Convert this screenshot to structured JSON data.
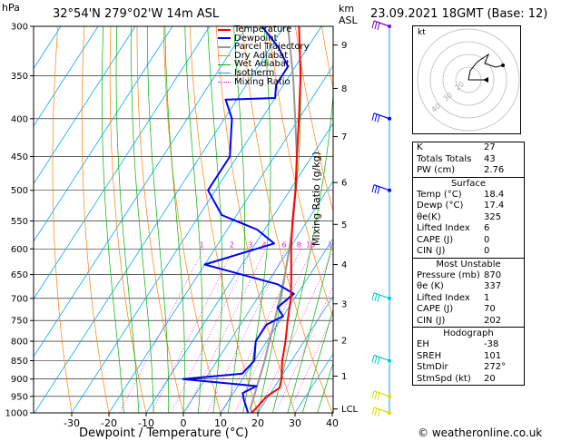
{
  "header": {
    "pressure_unit": "hPa",
    "location": "32°54'N  279°02'W  14m  ASL",
    "alt_unit_1": "km",
    "alt_unit_2": "ASL",
    "datetime": "23.09.2021  18GMT  (Base: 12)"
  },
  "legend": [
    {
      "label": "Temperature",
      "color": "#ff0000"
    },
    {
      "label": "Dewpoint",
      "color": "#0000ff"
    },
    {
      "label": "Parcel Trajectory",
      "color": "#999999"
    },
    {
      "label": "Dry Adiabat",
      "color": "#ff8000"
    },
    {
      "label": "Wet Adiabat",
      "color": "#00b000"
    },
    {
      "label": "Isotherm",
      "color": "#00aaff"
    },
    {
      "label": "Mixing Ratio",
      "color": "#ff00ff"
    }
  ],
  "chart_data": {
    "type": "skew-t",
    "xlabel": "Dewpoint / Temperature (°C)",
    "ylabel_right": "Mixing Ratio (g/kg)",
    "x_ticks": [
      "-30",
      "-20",
      "-10",
      "0",
      "10",
      "20",
      "30",
      "40"
    ],
    "p_ticks": [
      "300",
      "350",
      "400",
      "450",
      "500",
      "550",
      "600",
      "650",
      "700",
      "750",
      "800",
      "850",
      "900",
      "950",
      "1000"
    ],
    "km_ticks": [
      {
        "label": "9",
        "p": 318
      },
      {
        "label": "8",
        "p": 364
      },
      {
        "label": "7",
        "p": 423
      },
      {
        "label": "6",
        "p": 488
      },
      {
        "label": "5",
        "p": 556
      },
      {
        "label": "4",
        "p": 630
      },
      {
        "label": "3",
        "p": 712
      },
      {
        "label": "2",
        "p": 798
      },
      {
        "label": "1",
        "p": 892
      },
      {
        "label": "LCL",
        "p": 988
      }
    ],
    "mixing_ratio_labels": [
      "1",
      "2",
      "3",
      "4",
      "6",
      "8",
      "10",
      "15",
      "20",
      "25"
    ],
    "temperature": [
      {
        "p": 1000,
        "t": 18.4
      },
      {
        "p": 950,
        "t": 19.5
      },
      {
        "p": 925,
        "t": 21.5
      },
      {
        "p": 900,
        "t": 20.5
      },
      {
        "p": 850,
        "t": 17.5
      },
      {
        "p": 800,
        "t": 15.0
      },
      {
        "p": 750,
        "t": 12.0
      },
      {
        "p": 700,
        "t": 9.0
      },
      {
        "p": 650,
        "t": 5.0
      },
      {
        "p": 600,
        "t": 0.5
      },
      {
        "p": 550,
        "t": -4.0
      },
      {
        "p": 500,
        "t": -8.5
      },
      {
        "p": 450,
        "t": -14.0
      },
      {
        "p": 400,
        "t": -20.0
      },
      {
        "p": 350,
        "t": -27.0
      },
      {
        "p": 300,
        "t": -36.0
      }
    ],
    "dewpoint": [
      {
        "p": 1000,
        "t": 17.4
      },
      {
        "p": 960,
        "t": 14.0
      },
      {
        "p": 940,
        "t": 12.5
      },
      {
        "p": 920,
        "t": 15.0
      },
      {
        "p": 900,
        "t": -6.0
      },
      {
        "p": 885,
        "t": 9.0
      },
      {
        "p": 850,
        "t": 10.0
      },
      {
        "p": 800,
        "t": 7.0
      },
      {
        "p": 760,
        "t": 7.0
      },
      {
        "p": 740,
        "t": 10.0
      },
      {
        "p": 720,
        "t": 7.0
      },
      {
        "p": 690,
        "t": 9.0
      },
      {
        "p": 670,
        "t": 3.0
      },
      {
        "p": 630,
        "t": -20.0
      },
      {
        "p": 590,
        "t": -5.0
      },
      {
        "p": 565,
        "t": -12.0
      },
      {
        "p": 540,
        "t": -24.0
      },
      {
        "p": 500,
        "t": -32.0
      },
      {
        "p": 450,
        "t": -32.0
      },
      {
        "p": 400,
        "t": -38.0
      },
      {
        "p": 377,
        "t": -43.0
      },
      {
        "p": 375,
        "t": -30.0
      },
      {
        "p": 360,
        "t": -32.0
      },
      {
        "p": 340,
        "t": -32.0
      },
      {
        "p": 320,
        "t": -38.0
      },
      {
        "p": 300,
        "t": -46.0
      }
    ],
    "parcel": [
      {
        "p": 1000,
        "t": 18.4
      },
      {
        "p": 985,
        "t": 17.2
      },
      {
        "p": 900,
        "t": 14.5
      },
      {
        "p": 850,
        "t": 12.8
      },
      {
        "p": 800,
        "t": 10.7
      },
      {
        "p": 750,
        "t": 8.5
      },
      {
        "p": 700,
        "t": 6.0
      },
      {
        "p": 650,
        "t": 3.3
      },
      {
        "p": 600,
        "t": 0.0
      },
      {
        "p": 550,
        "t": -3.8
      },
      {
        "p": 500,
        "t": -8.5
      },
      {
        "p": 450,
        "t": -14.0
      },
      {
        "p": 400,
        "t": -21.0
      },
      {
        "p": 350,
        "t": -29.0
      },
      {
        "p": 300,
        "t": -39.0
      }
    ],
    "wind_barbs_p": [
      300,
      400,
      500,
      700,
      850,
      950,
      1000
    ]
  },
  "hodograph": {
    "label": "kt",
    "ring_labels": [
      "40",
      "30",
      "20"
    ]
  },
  "indices": [
    {
      "name": "K",
      "value": "27"
    },
    {
      "name": "Totals Totals",
      "value": "43"
    },
    {
      "name": "PW (cm)",
      "value": "2.76"
    }
  ],
  "surface": {
    "title": "Surface",
    "rows": [
      {
        "name": "Temp (°C)",
        "value": "18.4"
      },
      {
        "name": "Dewp (°C)",
        "value": "17.4"
      },
      {
        "name": "θe(K)",
        "value": "325"
      },
      {
        "name": "Lifted Index",
        "value": "6"
      },
      {
        "name": "CAPE (J)",
        "value": "0"
      },
      {
        "name": "CIN (J)",
        "value": "0"
      }
    ]
  },
  "most_unstable": {
    "title": "Most Unstable",
    "rows": [
      {
        "name": "Pressure (mb)",
        "value": "870"
      },
      {
        "name": "θe (K)",
        "value": "337"
      },
      {
        "name": "Lifted Index",
        "value": "1"
      },
      {
        "name": "CAPE (J)",
        "value": "70"
      },
      {
        "name": "CIN (J)",
        "value": "202"
      }
    ]
  },
  "hodograph_table": {
    "title": "Hodograph",
    "rows": [
      {
        "name": "EH",
        "value": "-38"
      },
      {
        "name": "SREH",
        "value": "101"
      },
      {
        "name": "StmDir",
        "value": "272°"
      },
      {
        "name": "StmSpd (kt)",
        "value": "20"
      }
    ]
  },
  "footer": {
    "copyright": "© weatheronline.co.uk"
  }
}
